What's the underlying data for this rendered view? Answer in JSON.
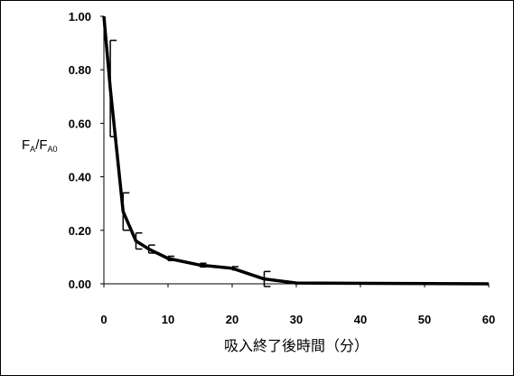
{
  "chart_data": {
    "type": "line",
    "x_label": "吸入終了後時間（分）",
    "y_label_parts": [
      "F",
      "A",
      "/F",
      "A0"
    ],
    "x": [
      0,
      1,
      3,
      5,
      7,
      10,
      15,
      20,
      25,
      30,
      60
    ],
    "series": [
      {
        "color": "#000000",
        "values": [
          1.0,
          0.73,
          0.27,
          0.16,
          0.13,
          0.095,
          0.07,
          0.058,
          0.018,
          0.003,
          0.0
        ],
        "errors": [
          null,
          0.18,
          0.07,
          0.03,
          0.015,
          0.008,
          0.007,
          0.006,
          0.028,
          null,
          null
        ]
      }
    ],
    "xlim": [
      0,
      60
    ],
    "xticks": [
      0,
      10,
      20,
      30,
      40,
      50,
      60
    ],
    "ylim": [
      0,
      1.0
    ],
    "yticks": [
      {
        "value": 0,
        "label": "0.00"
      },
      {
        "value": 0.2,
        "label": "0.20"
      },
      {
        "value": 0.4,
        "label": "0.40"
      },
      {
        "value": 0.6,
        "label": "0.60"
      },
      {
        "value": 0.8,
        "label": "0.80"
      },
      {
        "value": 1.0,
        "label": "1.00"
      }
    ]
  }
}
